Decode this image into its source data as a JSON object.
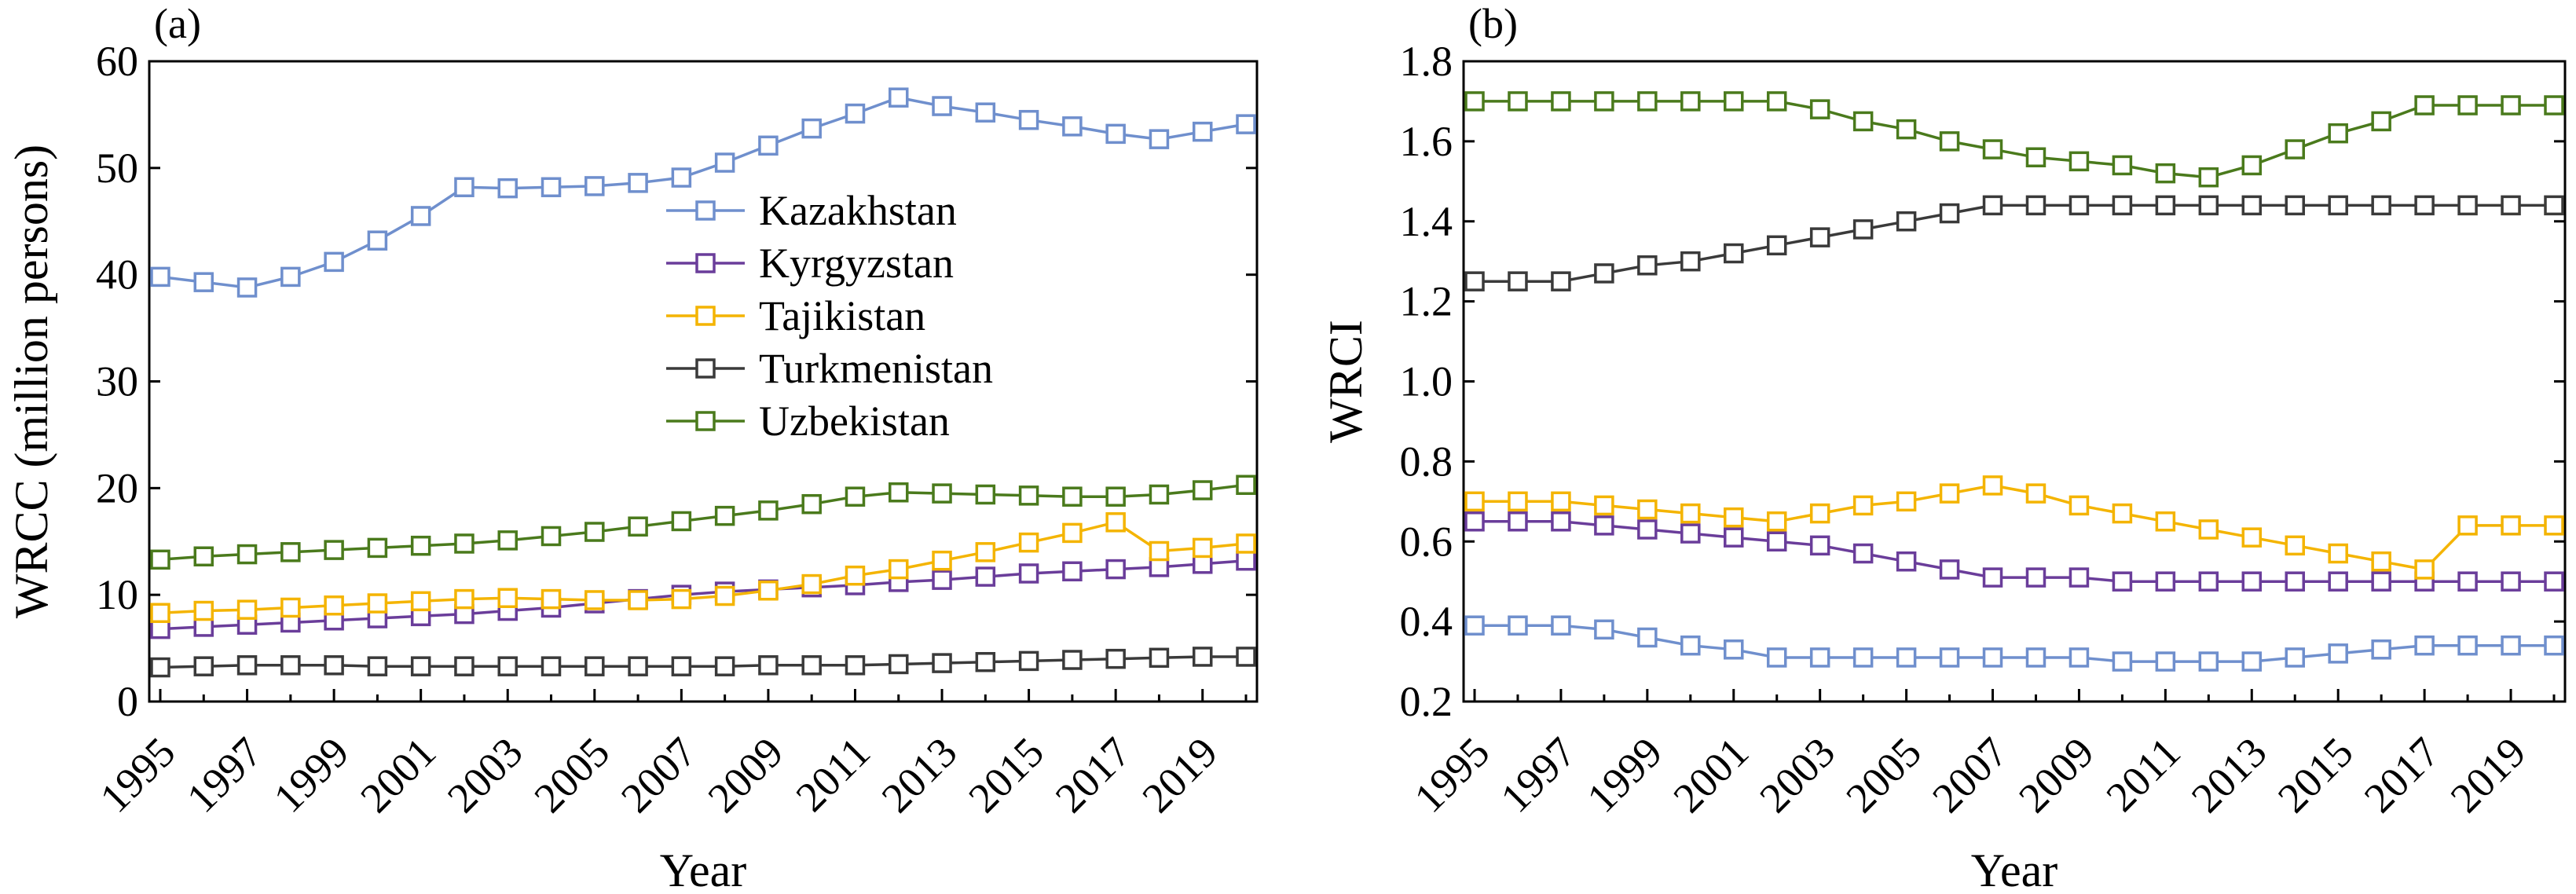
{
  "chart_data": [
    {
      "type": "line",
      "panel_label": "(a)",
      "xlabel": "Year",
      "ylabel": "WRCC (million persons)",
      "x": [
        1995,
        1996,
        1997,
        1998,
        1999,
        2000,
        2001,
        2002,
        2003,
        2004,
        2005,
        2006,
        2007,
        2008,
        2009,
        2010,
        2011,
        2012,
        2013,
        2014,
        2015,
        2016,
        2017,
        2018,
        2019,
        2020
      ],
      "xlim": [
        1995,
        2020
      ],
      "xticks": [
        "1995",
        "1997",
        "1999",
        "2001",
        "2003",
        "2005",
        "2007",
        "2009",
        "2011",
        "2013",
        "2015",
        "2017",
        "2019"
      ],
      "ylim": [
        0,
        60
      ],
      "yticks": [
        "0",
        "10",
        "20",
        "30",
        "40",
        "50",
        "60"
      ],
      "legend_position": "center-right",
      "series": [
        {
          "name": "Kazakhstan",
          "color": "#6f8fcd",
          "values": [
            39.8,
            39.3,
            38.8,
            39.8,
            41.2,
            43.2,
            45.5,
            48.2,
            48.1,
            48.2,
            48.3,
            48.6,
            49.1,
            50.5,
            52.1,
            53.7,
            55.1,
            56.6,
            55.8,
            55.2,
            54.5,
            53.9,
            53.2,
            52.7,
            53.4,
            54.1
          ]
        },
        {
          "name": "Kyrgyzstan",
          "color": "#6a3d9a",
          "values": [
            6.8,
            7.0,
            7.2,
            7.4,
            7.6,
            7.8,
            8.0,
            8.2,
            8.5,
            8.8,
            9.2,
            9.6,
            10.0,
            10.3,
            10.5,
            10.7,
            10.9,
            11.2,
            11.4,
            11.7,
            12.0,
            12.2,
            12.4,
            12.6,
            12.9,
            13.2
          ]
        },
        {
          "name": "Tajikistan",
          "color": "#f4b400",
          "values": [
            8.3,
            8.5,
            8.6,
            8.8,
            9.0,
            9.2,
            9.4,
            9.6,
            9.7,
            9.6,
            9.5,
            9.5,
            9.6,
            9.9,
            10.4,
            11.0,
            11.8,
            12.4,
            13.2,
            14.0,
            14.9,
            15.8,
            16.8,
            14.1,
            14.4,
            14.8
          ]
        },
        {
          "name": "Turkmenistan",
          "color": "#3a3a3a",
          "values": [
            3.2,
            3.3,
            3.4,
            3.4,
            3.4,
            3.3,
            3.3,
            3.3,
            3.3,
            3.3,
            3.3,
            3.3,
            3.3,
            3.3,
            3.4,
            3.4,
            3.4,
            3.5,
            3.6,
            3.7,
            3.8,
            3.9,
            4.0,
            4.1,
            4.2,
            4.2
          ]
        },
        {
          "name": "Uzbekistan",
          "color": "#4a7a1c",
          "values": [
            13.3,
            13.6,
            13.8,
            14.0,
            14.2,
            14.4,
            14.6,
            14.8,
            15.1,
            15.5,
            15.9,
            16.4,
            16.9,
            17.4,
            17.9,
            18.5,
            19.2,
            19.6,
            19.5,
            19.4,
            19.3,
            19.2,
            19.2,
            19.4,
            19.8,
            20.3
          ]
        }
      ]
    },
    {
      "type": "line",
      "panel_label": "(b)",
      "xlabel": "Year",
      "ylabel": "WRCI",
      "x": [
        1995,
        1996,
        1997,
        1998,
        1999,
        2000,
        2001,
        2002,
        2003,
        2004,
        2005,
        2006,
        2007,
        2008,
        2009,
        2010,
        2011,
        2012,
        2013,
        2014,
        2015,
        2016,
        2017,
        2018,
        2019,
        2020
      ],
      "xlim": [
        1995,
        2020
      ],
      "xticks": [
        "1995",
        "1997",
        "1999",
        "2001",
        "2003",
        "2005",
        "2007",
        "2009",
        "2011",
        "2013",
        "2015",
        "2017",
        "2019"
      ],
      "ylim": [
        0.2,
        1.8
      ],
      "yticks": [
        "0.2",
        "0.4",
        "0.6",
        "0.8",
        "1.0",
        "1.2",
        "1.4",
        "1.6",
        "1.8"
      ],
      "series": [
        {
          "name": "Kazakhstan",
          "color": "#6f8fcd",
          "values": [
            0.39,
            0.39,
            0.39,
            0.38,
            0.36,
            0.34,
            0.33,
            0.31,
            0.31,
            0.31,
            0.31,
            0.31,
            0.31,
            0.31,
            0.31,
            0.3,
            0.3,
            0.3,
            0.3,
            0.31,
            0.32,
            0.33,
            0.34,
            0.34,
            0.34,
            0.34
          ]
        },
        {
          "name": "Kyrgyzstan",
          "color": "#6a3d9a",
          "values": [
            0.65,
            0.65,
            0.65,
            0.64,
            0.63,
            0.62,
            0.61,
            0.6,
            0.59,
            0.57,
            0.55,
            0.53,
            0.51,
            0.51,
            0.51,
            0.5,
            0.5,
            0.5,
            0.5,
            0.5,
            0.5,
            0.5,
            0.5,
            0.5,
            0.5,
            0.5
          ]
        },
        {
          "name": "Tajikistan",
          "color": "#f4b400",
          "values": [
            0.7,
            0.7,
            0.7,
            0.69,
            0.68,
            0.67,
            0.66,
            0.65,
            0.67,
            0.69,
            0.7,
            0.72,
            0.74,
            0.72,
            0.69,
            0.67,
            0.65,
            0.63,
            0.61,
            0.59,
            0.57,
            0.55,
            0.53,
            0.64,
            0.64,
            0.64
          ]
        },
        {
          "name": "Turkmenistan",
          "color": "#3a3a3a",
          "values": [
            1.25,
            1.25,
            1.25,
            1.27,
            1.29,
            1.3,
            1.32,
            1.34,
            1.36,
            1.38,
            1.4,
            1.42,
            1.44,
            1.44,
            1.44,
            1.44,
            1.44,
            1.44,
            1.44,
            1.44,
            1.44,
            1.44,
            1.44,
            1.44,
            1.44,
            1.44
          ]
        },
        {
          "name": "Uzbekistan",
          "color": "#4a7a1c",
          "values": [
            1.7,
            1.7,
            1.7,
            1.7,
            1.7,
            1.7,
            1.7,
            1.7,
            1.68,
            1.65,
            1.63,
            1.6,
            1.58,
            1.56,
            1.55,
            1.54,
            1.52,
            1.51,
            1.54,
            1.58,
            1.62,
            1.65,
            1.69,
            1.69,
            1.69,
            1.69
          ]
        }
      ]
    }
  ]
}
